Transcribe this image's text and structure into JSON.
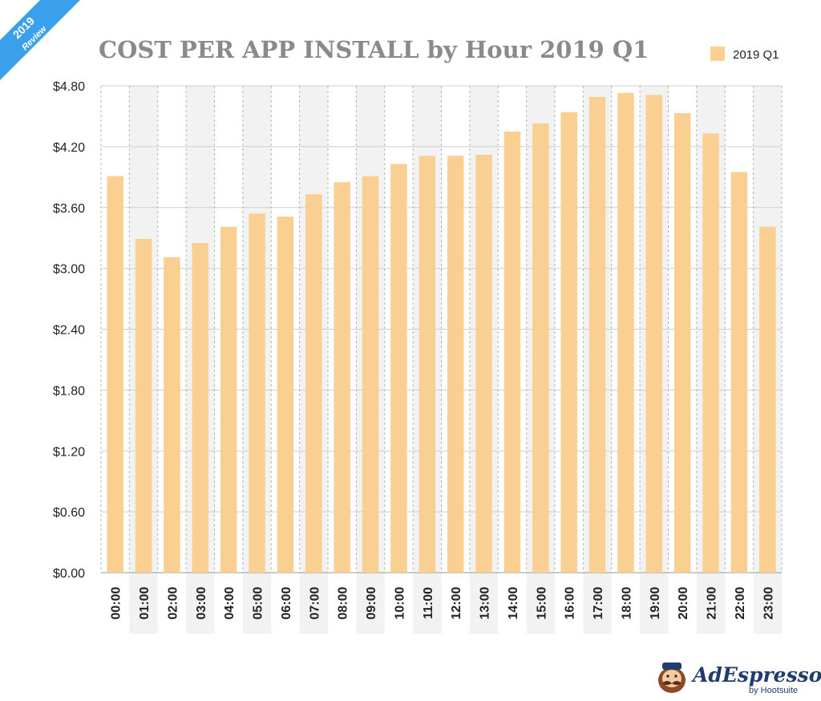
{
  "badge": {
    "year": "2019",
    "label": "Review"
  },
  "brand": {
    "name": "AdEspresso",
    "sub": "by Hootsuite"
  },
  "colors": {
    "bar": "#f9cf92",
    "band": "#f2f2f2",
    "title": "#8a8a8a",
    "ribbon": "#3aa0ec",
    "brand": "#1f3c6e"
  },
  "chart_data": {
    "type": "bar",
    "title": "COST PER APP INSTALL by Hour 2019 Q1",
    "xlabel": "",
    "ylabel": "",
    "ylim": [
      0,
      4.8
    ],
    "yticks": [
      "$0.00",
      "$0.60",
      "$1.20",
      "$1.80",
      "$2.40",
      "$3.00",
      "$3.60",
      "$4.20",
      "$4.80"
    ],
    "grid": true,
    "legend_position": "top-right",
    "categories": [
      "00:00",
      "01:00",
      "02:00",
      "03:00",
      "04:00",
      "05:00",
      "06:00",
      "07:00",
      "08:00",
      "09:00",
      "10:00",
      "11:00",
      "12:00",
      "13:00",
      "14:00",
      "15:00",
      "16:00",
      "17:00",
      "18:00",
      "19:00",
      "20:00",
      "21:00",
      "22:00",
      "23:00"
    ],
    "series": [
      {
        "name": "2019 Q1",
        "values": [
          3.91,
          3.29,
          3.11,
          3.25,
          3.41,
          3.54,
          3.51,
          3.73,
          3.85,
          3.91,
          4.03,
          4.11,
          4.11,
          4.12,
          4.35,
          4.43,
          4.54,
          4.69,
          4.73,
          4.71,
          4.53,
          4.33,
          3.95,
          3.41
        ]
      }
    ]
  }
}
